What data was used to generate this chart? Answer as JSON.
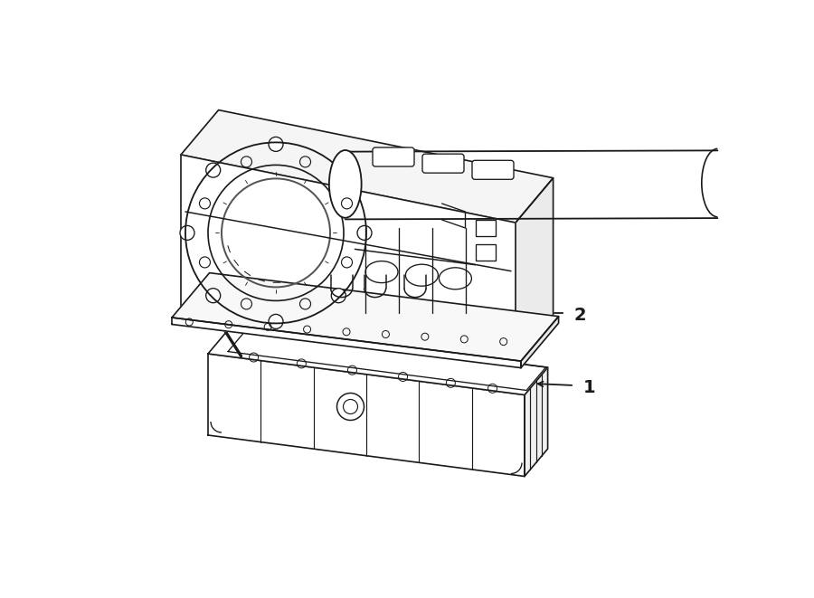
{
  "background_color": "#ffffff",
  "line_color": "#1a1a1a",
  "line_width": 1.2,
  "fig_width": 9.0,
  "fig_height": 6.61,
  "dpi": 100,
  "label_1_text": "1",
  "label_2_text": "2"
}
